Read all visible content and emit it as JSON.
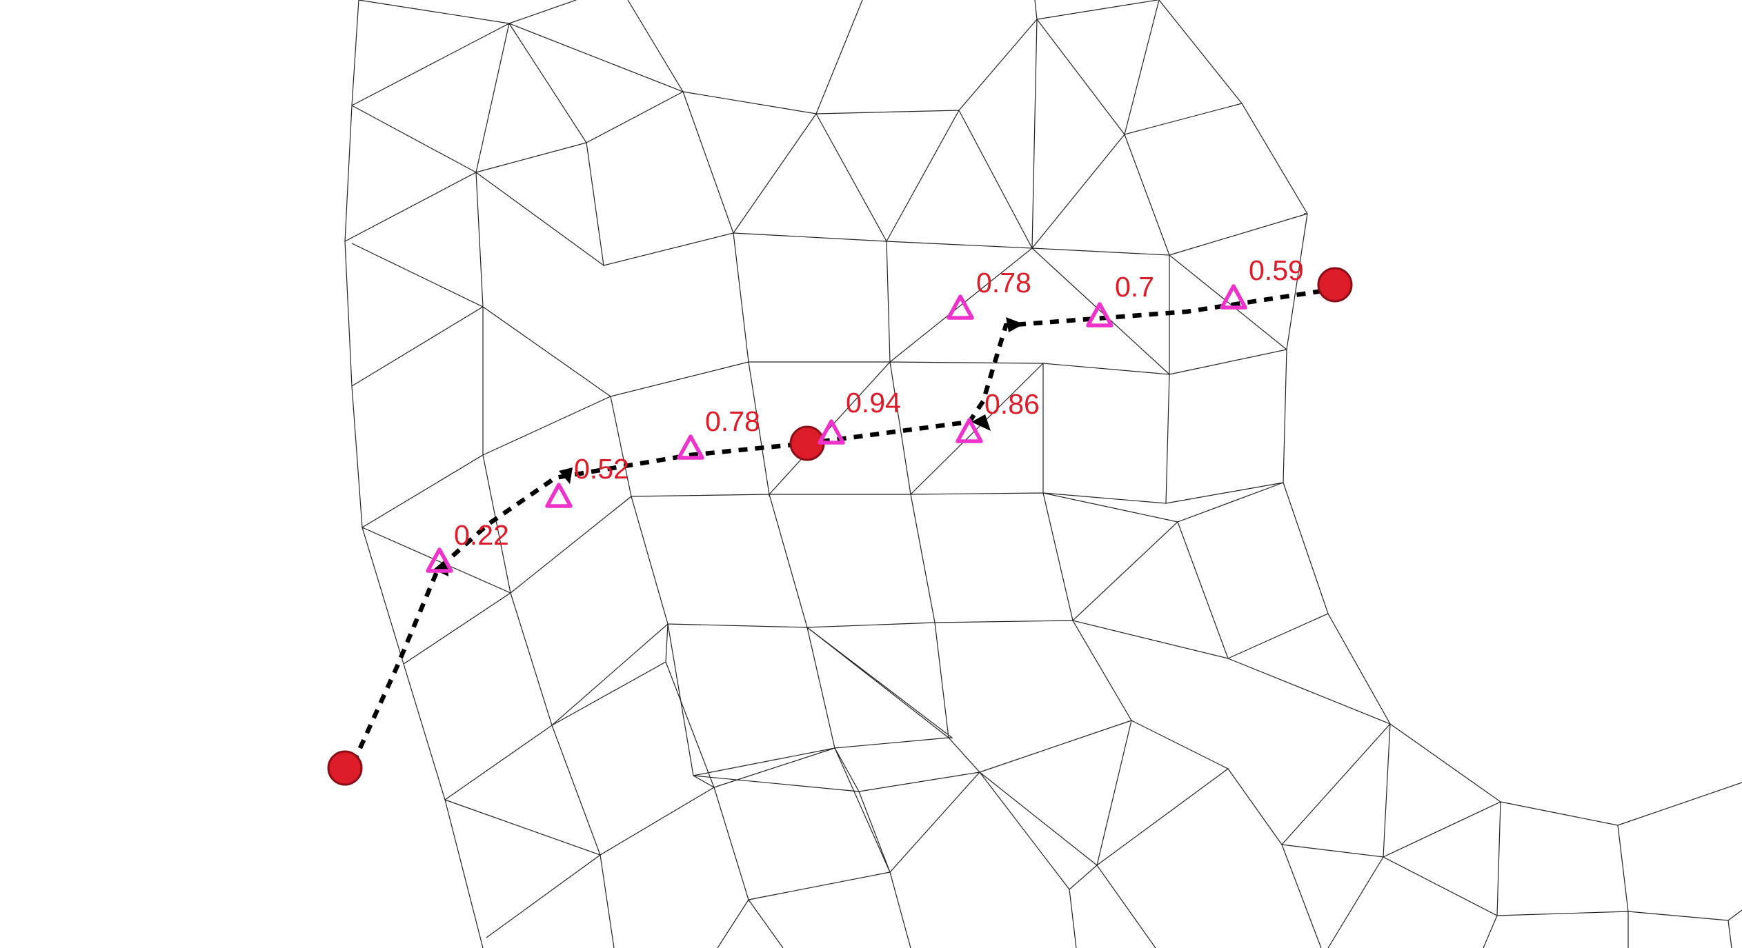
{
  "colors": {
    "background": "#ffffff",
    "mesh": "#222222",
    "path": "#000000",
    "waypoint": "#dd1c2a",
    "sample_marker": "#ee33cc",
    "value_label": "#dd1c2a"
  },
  "diagram": {
    "mesh_type": "triangle and quadrilateral mesh",
    "path_style": "dashed with arrowheads",
    "waypoint_count": 3,
    "sample_values": [
      "0.22",
      "0.52",
      "0.78",
      "0.94",
      "0.86",
      "0.78",
      "0.7",
      "0.59"
    ]
  }
}
